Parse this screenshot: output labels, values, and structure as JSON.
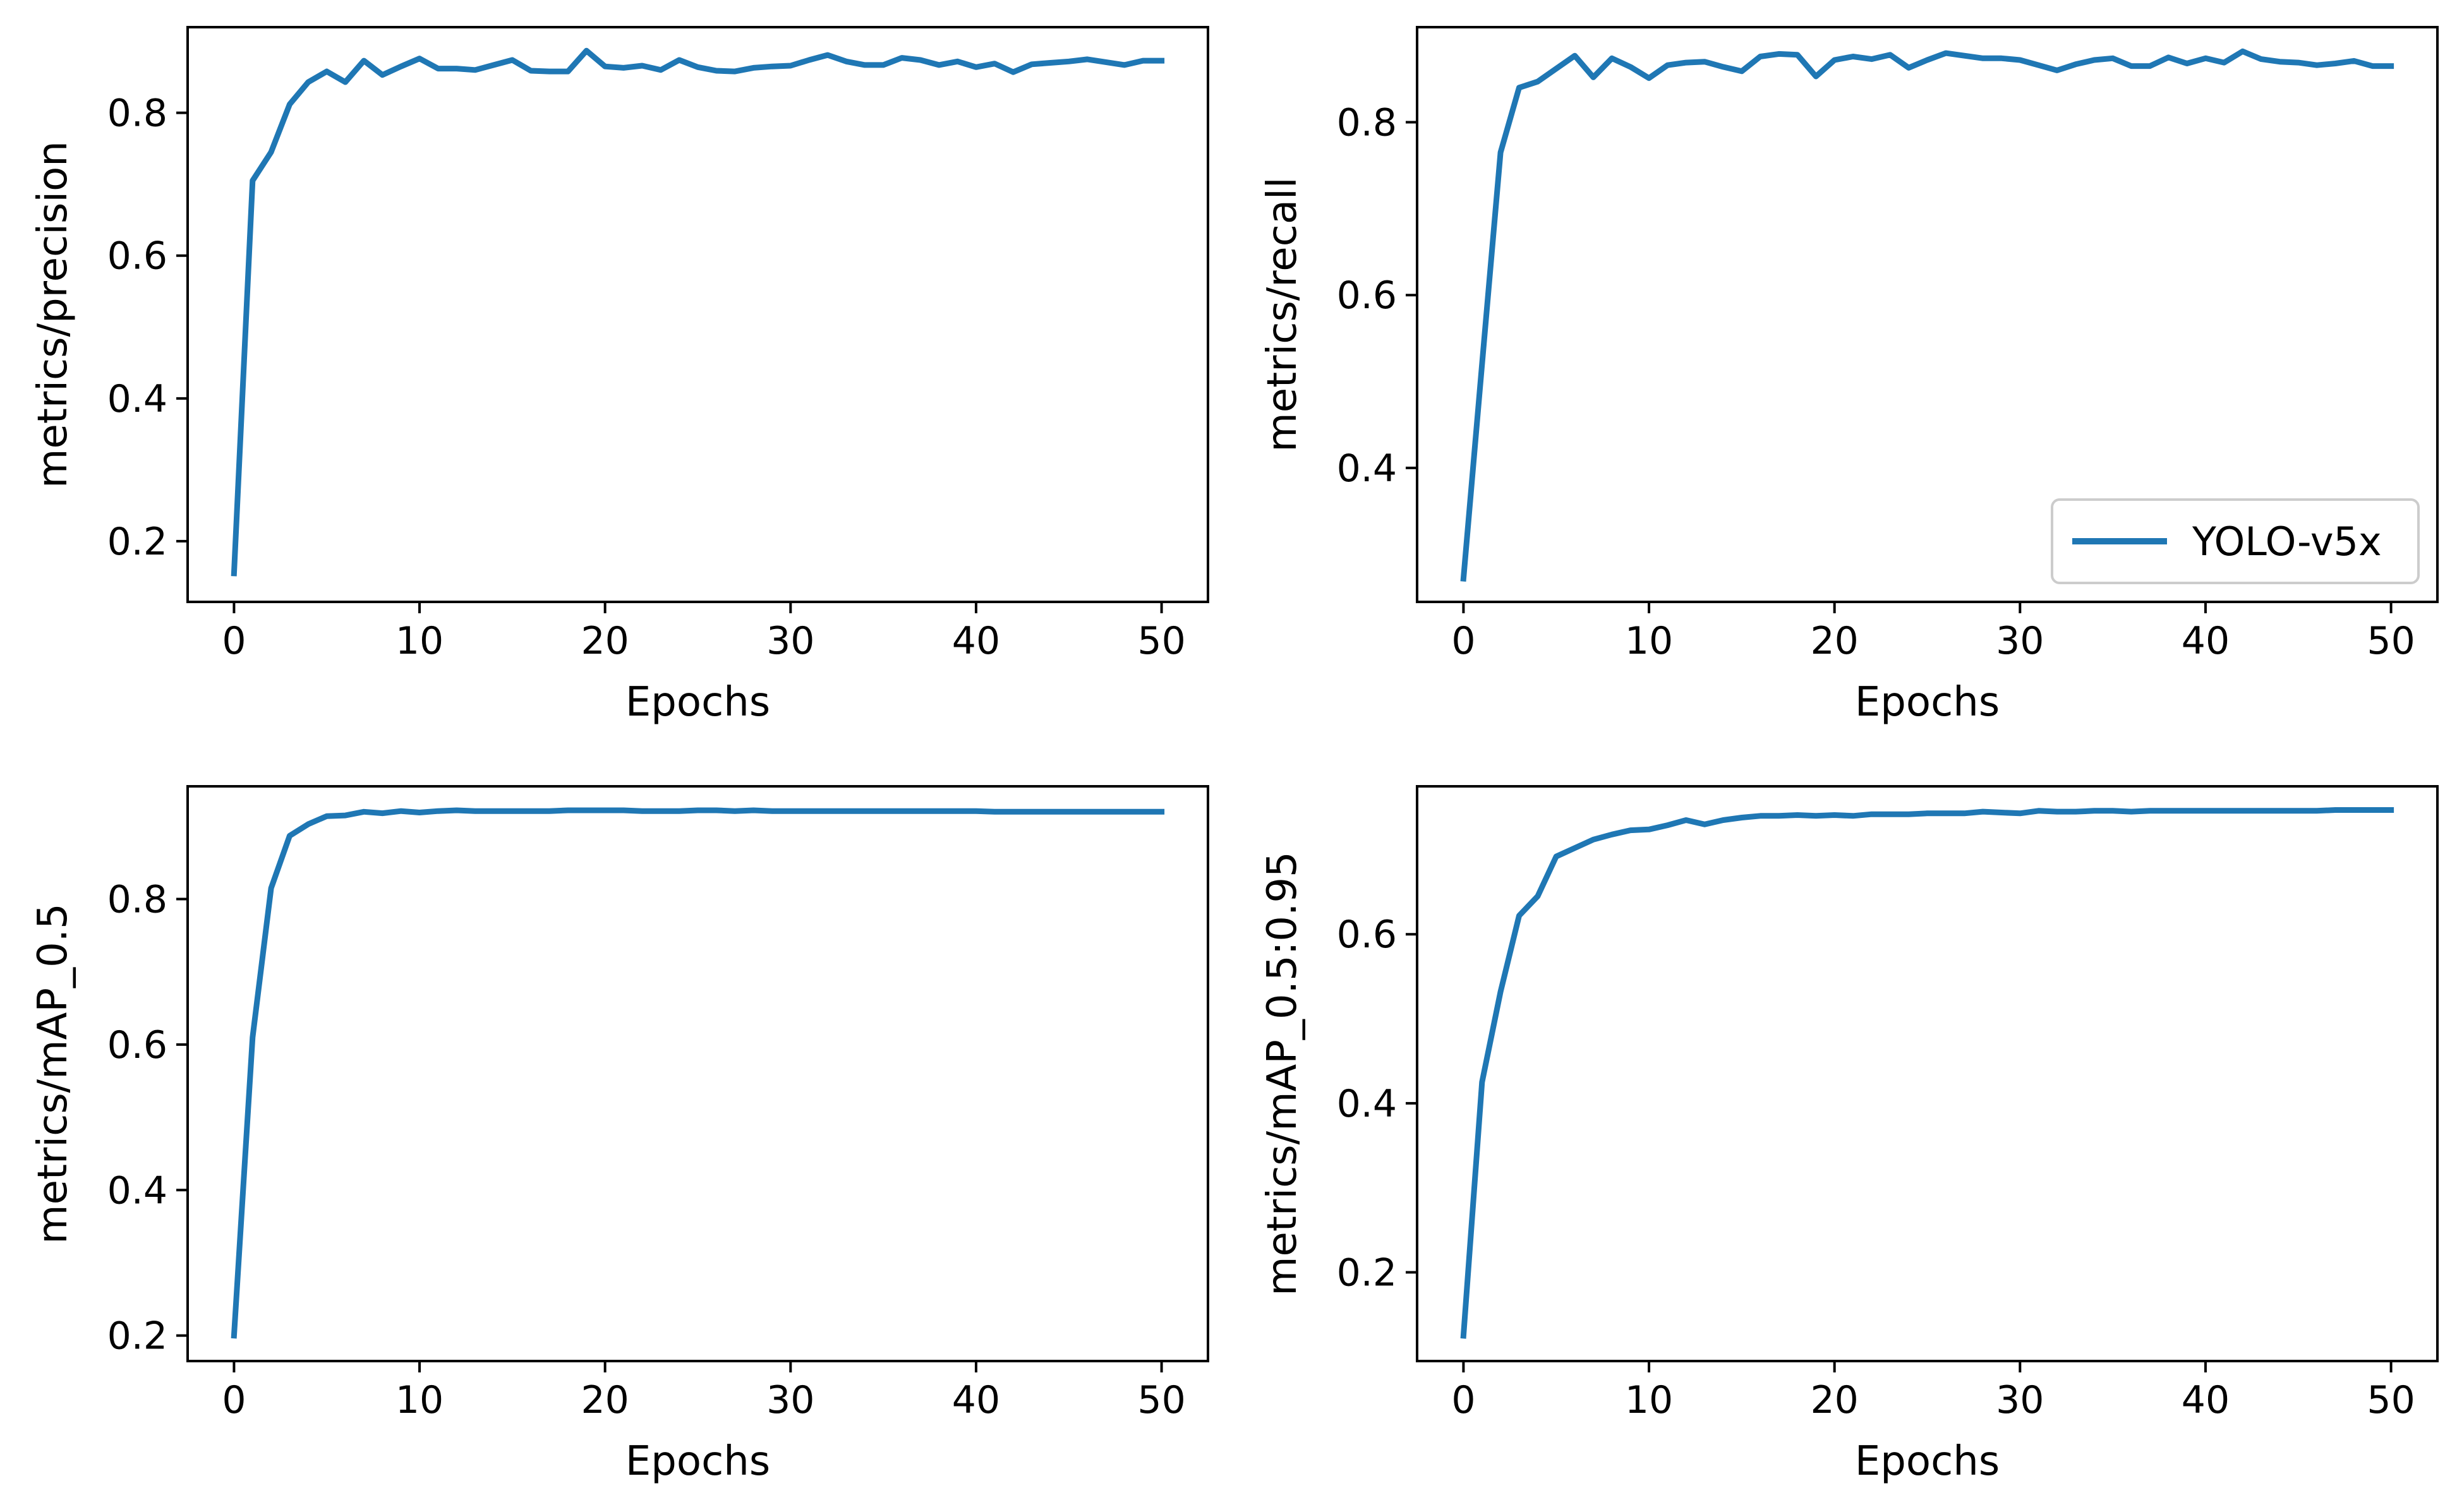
{
  "figure": {
    "line_color": "#1f77b4",
    "axis_color": "#000000",
    "legend_border_color": "#cccccc"
  },
  "chart_data": [
    {
      "type": "line",
      "id": "precision",
      "title": "",
      "xlabel": "Epochs",
      "ylabel": "metrics/precision",
      "xlim": [
        -2.5,
        52.5
      ],
      "ylim": [
        0.115,
        0.92
      ],
      "xticks": [
        0,
        10,
        20,
        30,
        40,
        50
      ],
      "xtick_labels": [
        "0",
        "10",
        "20",
        "30",
        "40",
        "50"
      ],
      "yticks": [
        0.2,
        0.4,
        0.6,
        0.8
      ],
      "ytick_labels": [
        "0.2",
        "0.4",
        "0.6",
        "0.8"
      ],
      "legend": null,
      "series": [
        {
          "name": "YOLO-v5x",
          "x": [
            0,
            1,
            2,
            3,
            4,
            5,
            6,
            7,
            8,
            9,
            10,
            11,
            12,
            13,
            14,
            15,
            16,
            17,
            18,
            19,
            20,
            21,
            22,
            23,
            24,
            25,
            26,
            27,
            28,
            29,
            30,
            31,
            32,
            33,
            34,
            35,
            36,
            37,
            38,
            39,
            40,
            41,
            42,
            43,
            44,
            45,
            46,
            47,
            48,
            49,
            50
          ],
          "y": [
            0.155,
            0.705,
            0.745,
            0.812,
            0.843,
            0.858,
            0.843,
            0.873,
            0.853,
            0.865,
            0.876,
            0.862,
            0.862,
            0.86,
            0.867,
            0.874,
            0.859,
            0.858,
            0.858,
            0.887,
            0.865,
            0.863,
            0.866,
            0.86,
            0.874,
            0.864,
            0.859,
            0.858,
            0.863,
            0.865,
            0.866,
            0.874,
            0.881,
            0.872,
            0.867,
            0.867,
            0.877,
            0.874,
            0.867,
            0.872,
            0.864,
            0.869,
            0.857,
            0.868,
            0.87,
            0.872,
            0.875,
            0.871,
            0.867,
            0.873,
            0.873
          ]
        }
      ]
    },
    {
      "type": "line",
      "id": "recall",
      "title": "",
      "xlabel": "Epochs",
      "ylabel": "metrics/recall",
      "xlim": [
        -2.5,
        52.5
      ],
      "ylim": [
        0.245,
        0.91
      ],
      "xticks": [
        0,
        10,
        20,
        30,
        40,
        50
      ],
      "xtick_labels": [
        "0",
        "10",
        "20",
        "30",
        "40",
        "50"
      ],
      "yticks": [
        0.4,
        0.6,
        0.8
      ],
      "ytick_labels": [
        "0.4",
        "0.6",
        "0.8"
      ],
      "legend": {
        "label": "YOLO-v5x",
        "loc": "lower right"
      },
      "series": [
        {
          "name": "YOLO-v5x",
          "x": [
            0,
            1,
            2,
            3,
            4,
            5,
            6,
            7,
            8,
            9,
            10,
            11,
            12,
            13,
            14,
            15,
            16,
            17,
            18,
            19,
            20,
            21,
            22,
            23,
            24,
            25,
            26,
            27,
            28,
            29,
            30,
            31,
            32,
            33,
            34,
            35,
            36,
            37,
            38,
            39,
            40,
            41,
            42,
            43,
            44,
            45,
            46,
            47,
            48,
            49,
            50
          ],
          "y": [
            0.272,
            0.52,
            0.765,
            0.84,
            0.847,
            0.862,
            0.877,
            0.852,
            0.874,
            0.864,
            0.851,
            0.866,
            0.869,
            0.87,
            0.864,
            0.859,
            0.876,
            0.879,
            0.878,
            0.853,
            0.872,
            0.876,
            0.873,
            0.878,
            0.863,
            0.872,
            0.88,
            0.877,
            0.874,
            0.874,
            0.872,
            0.866,
            0.86,
            0.867,
            0.872,
            0.874,
            0.865,
            0.865,
            0.875,
            0.868,
            0.874,
            0.869,
            0.882,
            0.873,
            0.87,
            0.869,
            0.866,
            0.868,
            0.871,
            0.865,
            0.865
          ]
        }
      ]
    },
    {
      "type": "line",
      "id": "map50",
      "title": "",
      "xlabel": "Epochs",
      "ylabel": "metrics/mAP_0.5",
      "xlim": [
        -2.5,
        52.5
      ],
      "ylim": [
        0.165,
        0.955
      ],
      "xticks": [
        0,
        10,
        20,
        30,
        40,
        50
      ],
      "xtick_labels": [
        "0",
        "10",
        "20",
        "30",
        "40",
        "50"
      ],
      "yticks": [
        0.2,
        0.4,
        0.6,
        0.8
      ],
      "ytick_labels": [
        "0.2",
        "0.4",
        "0.6",
        "0.8"
      ],
      "legend": null,
      "series": [
        {
          "name": "YOLO-v5x",
          "x": [
            0,
            1,
            2,
            3,
            4,
            5,
            6,
            7,
            8,
            9,
            10,
            11,
            12,
            13,
            14,
            15,
            16,
            17,
            18,
            19,
            20,
            21,
            22,
            23,
            24,
            25,
            26,
            27,
            28,
            29,
            30,
            31,
            32,
            33,
            34,
            35,
            36,
            37,
            38,
            39,
            40,
            41,
            42,
            43,
            44,
            45,
            46,
            47,
            48,
            49,
            50
          ],
          "y": [
            0.2,
            0.61,
            0.815,
            0.887,
            0.903,
            0.914,
            0.915,
            0.92,
            0.918,
            0.921,
            0.919,
            0.921,
            0.922,
            0.921,
            0.921,
            0.921,
            0.921,
            0.921,
            0.922,
            0.922,
            0.922,
            0.922,
            0.921,
            0.921,
            0.921,
            0.922,
            0.922,
            0.921,
            0.922,
            0.921,
            0.921,
            0.921,
            0.921,
            0.921,
            0.921,
            0.921,
            0.921,
            0.921,
            0.921,
            0.921,
            0.921,
            0.92,
            0.92,
            0.92,
            0.92,
            0.92,
            0.92,
            0.92,
            0.92,
            0.92,
            0.92
          ]
        }
      ]
    },
    {
      "type": "line",
      "id": "map5095",
      "title": "",
      "xlabel": "Epochs",
      "ylabel": "metrics/mAP_0.5:0.95",
      "xlim": [
        -2.5,
        52.5
      ],
      "ylim": [
        0.095,
        0.775
      ],
      "xticks": [
        0,
        10,
        20,
        30,
        40,
        50
      ],
      "xtick_labels": [
        "0",
        "10",
        "20",
        "30",
        "40",
        "50"
      ],
      "yticks": [
        0.2,
        0.4,
        0.6
      ],
      "ytick_labels": [
        "0.2",
        "0.4",
        "0.6"
      ],
      "legend": null,
      "series": [
        {
          "name": "YOLO-v5x",
          "x": [
            0,
            1,
            2,
            3,
            4,
            5,
            6,
            7,
            8,
            9,
            10,
            11,
            12,
            13,
            14,
            15,
            16,
            17,
            18,
            19,
            20,
            21,
            22,
            23,
            24,
            25,
            26,
            27,
            28,
            29,
            30,
            31,
            32,
            33,
            34,
            35,
            36,
            37,
            38,
            39,
            40,
            41,
            42,
            43,
            44,
            45,
            46,
            47,
            48,
            49,
            50
          ],
          "y": [
            0.125,
            0.425,
            0.532,
            0.622,
            0.645,
            0.692,
            0.702,
            0.712,
            0.718,
            0.723,
            0.724,
            0.729,
            0.735,
            0.73,
            0.735,
            0.738,
            0.74,
            0.74,
            0.741,
            0.74,
            0.741,
            0.74,
            0.742,
            0.742,
            0.742,
            0.743,
            0.743,
            0.743,
            0.745,
            0.744,
            0.743,
            0.746,
            0.745,
            0.745,
            0.746,
            0.746,
            0.745,
            0.746,
            0.746,
            0.746,
            0.746,
            0.746,
            0.746,
            0.746,
            0.746,
            0.746,
            0.746,
            0.747,
            0.747,
            0.747,
            0.747
          ]
        }
      ]
    }
  ]
}
